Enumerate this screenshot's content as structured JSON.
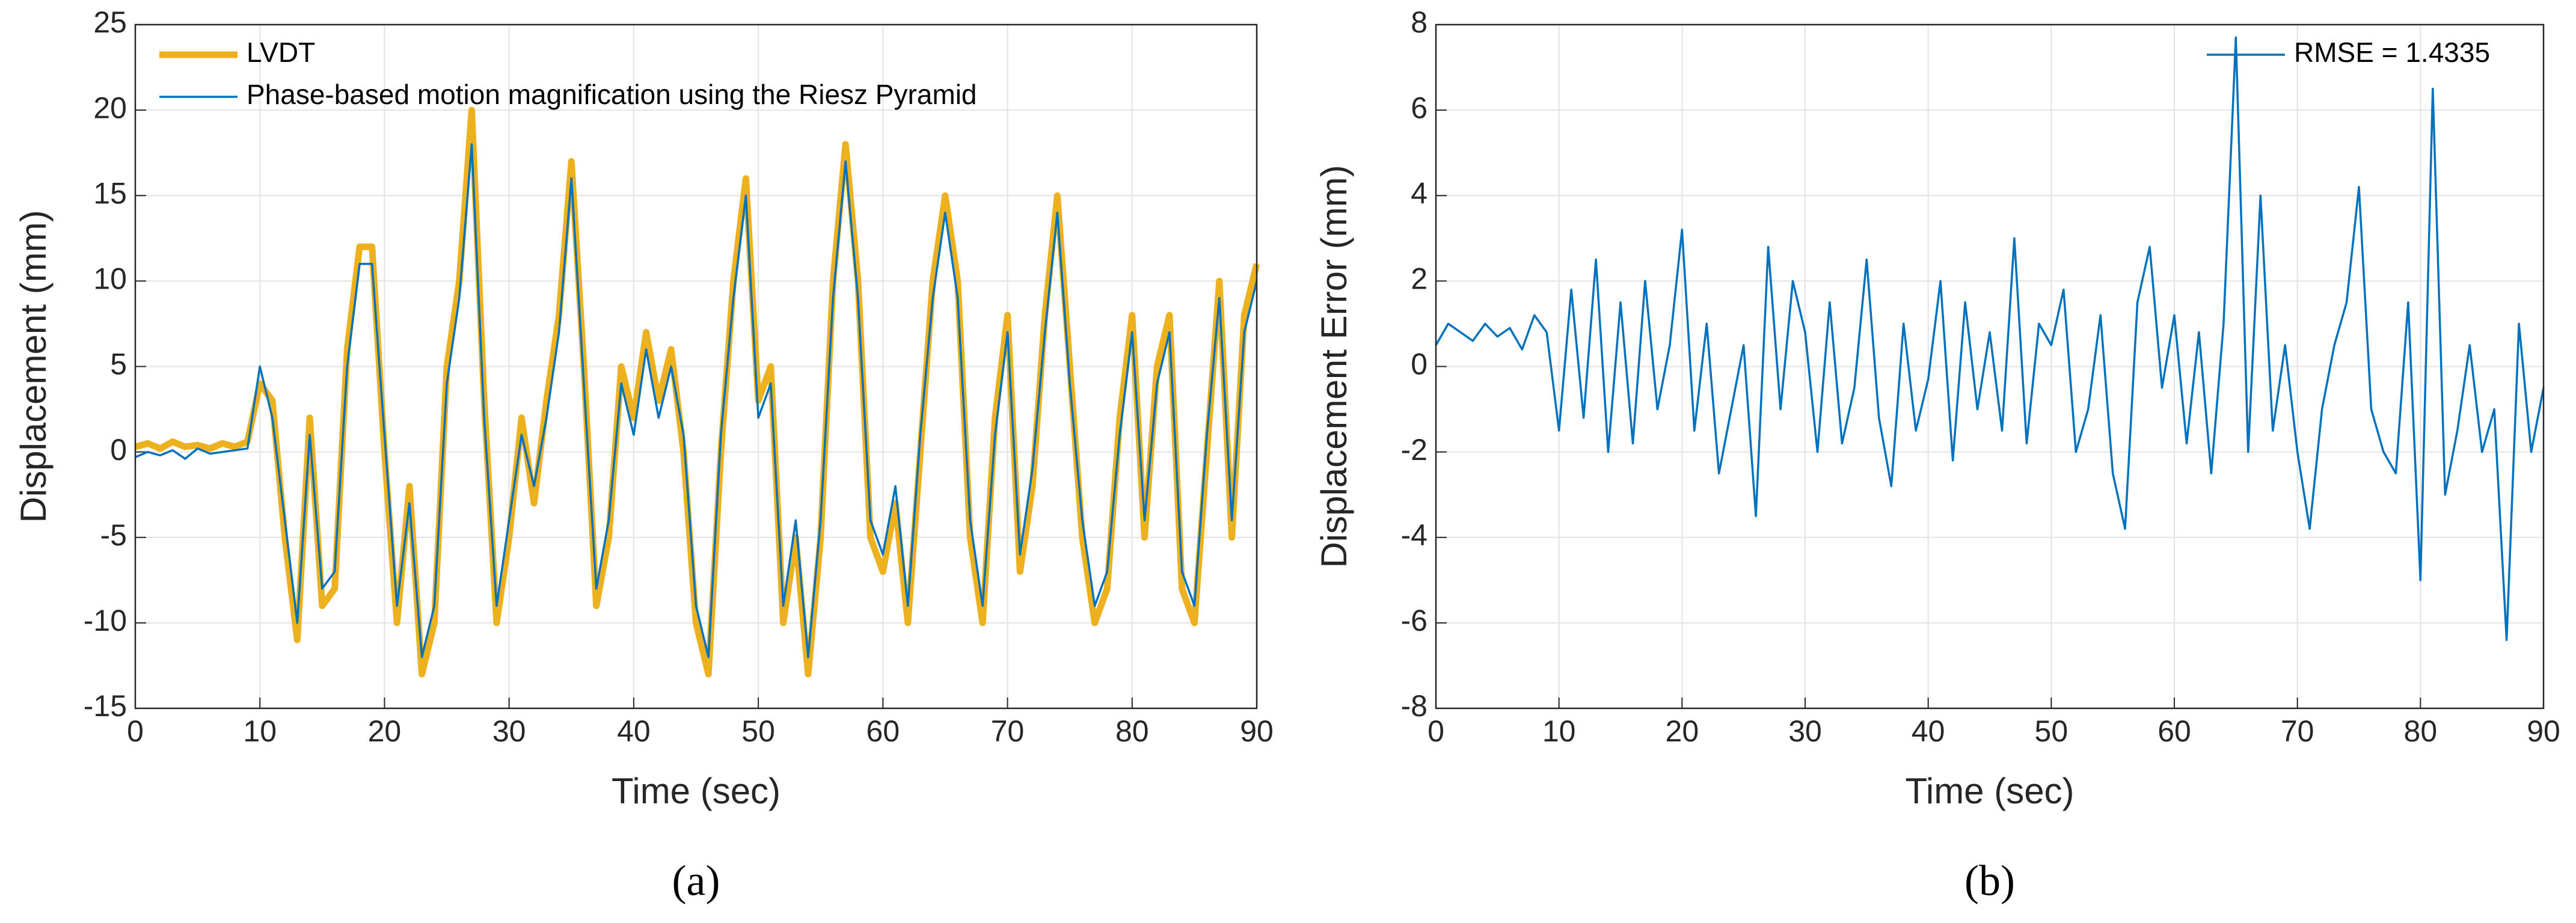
{
  "chart_data": [
    {
      "type": "line",
      "xlabel": "Time (sec)",
      "ylabel": "Displacement (mm)",
      "caption": "(a)",
      "x": [
        0,
        1,
        2,
        3,
        4,
        5,
        6,
        7,
        8,
        9,
        10,
        11,
        12,
        13,
        14,
        15,
        16,
        17,
        18,
        19,
        20,
        21,
        22,
        23,
        24,
        25,
        26,
        27,
        28,
        29,
        30,
        31,
        32,
        33,
        34,
        35,
        36,
        37,
        38,
        39,
        40,
        41,
        42,
        43,
        44,
        45,
        46,
        47,
        48,
        49,
        50,
        51,
        52,
        53,
        54,
        55,
        56,
        57,
        58,
        59,
        60,
        61,
        62,
        63,
        64,
        65,
        66,
        67,
        68,
        69,
        70,
        71,
        72,
        73,
        74,
        75,
        76,
        77,
        78,
        79,
        80,
        81,
        82,
        83,
        84,
        85,
        86,
        87,
        88,
        89,
        90
      ],
      "series": [
        {
          "name": "LVDT",
          "color": "#EDB120",
          "values": [
            0.3,
            0.5,
            0.2,
            0.6,
            0.3,
            0.4,
            0.2,
            0.5,
            0.3,
            0.6,
            4,
            3,
            -5,
            -11,
            2,
            -9,
            -8,
            6,
            12,
            12,
            0,
            -10,
            -2,
            -13,
            -10,
            5,
            10,
            20,
            3,
            -10,
            -5,
            2,
            -3,
            3,
            8,
            17,
            5,
            -9,
            -5,
            5,
            2,
            7,
            3,
            6,
            0,
            -10,
            -13,
            0,
            10,
            16,
            3,
            5,
            -10,
            -5,
            -13,
            -5,
            10,
            18,
            10,
            -5,
            -7,
            -3,
            -10,
            0,
            10,
            15,
            10,
            -5,
            -10,
            2,
            8,
            -7,
            -2,
            8,
            15,
            5,
            -5,
            -10,
            -8,
            2,
            8,
            -5,
            5,
            8,
            -8,
            -10,
            0,
            10,
            -5,
            8,
            11
          ]
        },
        {
          "name": "Phase-based motion magnification using the Riesz Pyramid",
          "color": "#0072BD",
          "values": [
            -0.3,
            0,
            -0.2,
            0.1,
            -0.4,
            0.2,
            -0.1,
            0,
            0.1,
            0.2,
            5,
            2,
            -4,
            -10,
            1,
            -8,
            -7,
            5,
            11,
            11,
            1,
            -9,
            -3,
            -12,
            -9,
            4,
            9,
            18,
            2,
            -9,
            -4,
            1,
            -2,
            2,
            7,
            16,
            4,
            -8,
            -4,
            4,
            1,
            6,
            2,
            5,
            1,
            -9,
            -12,
            1,
            9,
            15,
            2,
            4,
            -9,
            -4,
            -12,
            -4,
            9,
            17,
            9,
            -4,
            -6,
            -2,
            -9,
            1,
            9,
            14,
            9,
            -4,
            -9,
            1,
            7,
            -6,
            -1,
            7,
            14,
            4,
            -4,
            -9,
            -7,
            1,
            7,
            -4,
            4,
            7,
            -7,
            -9,
            1,
            9,
            -4,
            7,
            10
          ]
        }
      ],
      "xlim": [
        0,
        90
      ],
      "ylim": [
        -15,
        25
      ],
      "xticks": [
        0,
        10,
        20,
        30,
        40,
        50,
        60,
        70,
        80,
        90
      ],
      "yticks": [
        -15,
        -10,
        -5,
        0,
        5,
        10,
        15,
        20,
        25
      ],
      "grid": true,
      "legend": "upper left"
    },
    {
      "type": "line",
      "xlabel": "Time (sec)",
      "ylabel": "Displacement Error (mm)",
      "caption": "(b)",
      "x": [
        0,
        1,
        2,
        3,
        4,
        5,
        6,
        7,
        8,
        9,
        10,
        11,
        12,
        13,
        14,
        15,
        16,
        17,
        18,
        19,
        20,
        21,
        22,
        23,
        24,
        25,
        26,
        27,
        28,
        29,
        30,
        31,
        32,
        33,
        34,
        35,
        36,
        37,
        38,
        39,
        40,
        41,
        42,
        43,
        44,
        45,
        46,
        47,
        48,
        49,
        50,
        51,
        52,
        53,
        54,
        55,
        56,
        57,
        58,
        59,
        60,
        61,
        62,
        63,
        64,
        65,
        66,
        67,
        68,
        69,
        70,
        71,
        72,
        73,
        74,
        75,
        76,
        77,
        78,
        79,
        80,
        81,
        82,
        83,
        84,
        85,
        86,
        87,
        88,
        89,
        90
      ],
      "series": [
        {
          "name": "RMSE = 1.4335",
          "color": "#0072BD",
          "values": [
            0.5,
            1.0,
            0.8,
            0.6,
            1.0,
            0.7,
            0.9,
            0.4,
            1.2,
            0.8,
            -1.5,
            1.8,
            -1.2,
            2.5,
            -2.0,
            1.5,
            -1.8,
            2.0,
            -1.0,
            0.5,
            3.2,
            -1.5,
            1.0,
            -2.5,
            -1.0,
            0.5,
            -3.5,
            2.8,
            -1.0,
            2.0,
            0.8,
            -2.0,
            1.5,
            -1.8,
            -0.5,
            2.5,
            -1.2,
            -2.8,
            1.0,
            -1.5,
            -0.3,
            2.0,
            -2.2,
            1.5,
            -1.0,
            0.8,
            -1.5,
            3.0,
            -1.8,
            1.0,
            0.5,
            1.8,
            -2.0,
            -1.0,
            1.2,
            -2.5,
            -3.8,
            1.5,
            2.8,
            -0.5,
            1.2,
            -1.8,
            0.8,
            -2.5,
            1.0,
            7.7,
            -2.0,
            4.0,
            -1.5,
            0.5,
            -2.0,
            -3.8,
            -1.0,
            0.5,
            1.5,
            4.2,
            -1.0,
            -2.0,
            -2.5,
            1.5,
            -5.0,
            6.5,
            -3.0,
            -1.5,
            0.5,
            -2.0,
            -1.0,
            -6.4,
            1.0,
            -2.0,
            -0.5
          ]
        }
      ],
      "xlim": [
        0,
        90
      ],
      "ylim": [
        -8,
        8
      ],
      "xticks": [
        0,
        10,
        20,
        30,
        40,
        50,
        60,
        70,
        80,
        90
      ],
      "yticks": [
        -8,
        -6,
        -4,
        -2,
        0,
        2,
        4,
        6,
        8
      ],
      "grid": true,
      "legend": "upper right"
    }
  ]
}
